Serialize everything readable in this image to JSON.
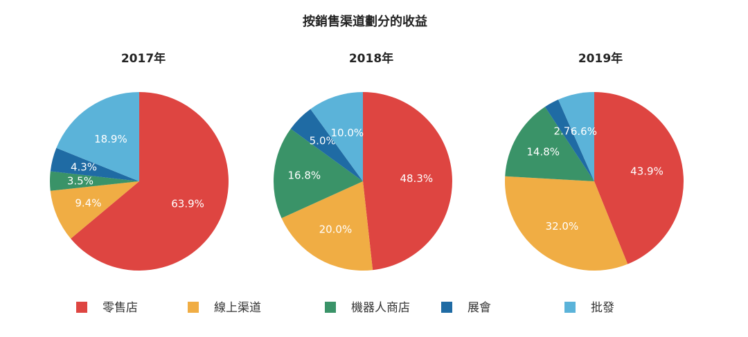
{
  "chart_data": {
    "type": "pie",
    "title": "按銷售渠道劃分的收益",
    "categories": [
      "零售店",
      "線上渠道",
      "機器人商店",
      "展會",
      "批發"
    ],
    "colors": [
      "#de4541",
      "#f0ad44",
      "#3a9368",
      "#1f6ba4",
      "#5bb3d9"
    ],
    "legend_position": "bottom",
    "pies": [
      {
        "year": "2017年",
        "values": [
          63.9,
          9.4,
          3.5,
          4.3,
          18.9
        ],
        "labels": [
          "63.9%",
          "9.4%",
          "3.5%",
          "4.3%",
          "18.9%"
        ]
      },
      {
        "year": "2018年",
        "values": [
          48.3,
          20.0,
          16.8,
          5.0,
          10.0
        ],
        "labels": [
          "48.3%",
          "20.0%",
          "16.8%",
          "5.0%",
          "10.0%"
        ]
      },
      {
        "year": "2019年",
        "values": [
          43.9,
          32.0,
          14.8,
          2.7,
          6.6
        ],
        "labels": [
          "43.9%",
          "32.0%",
          "14.8%",
          "2.7%",
          "6.6%"
        ]
      }
    ]
  }
}
